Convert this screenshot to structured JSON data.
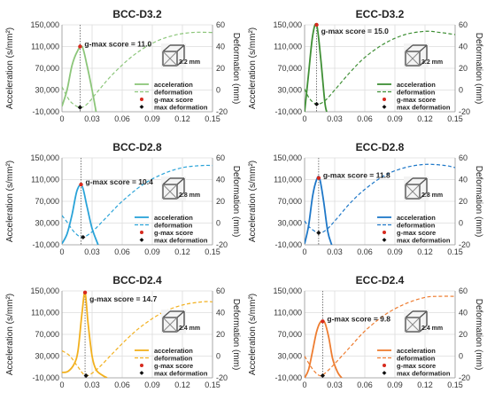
{
  "figure": {
    "y_left_ticks": [
      "150,000",
      "110,000",
      "70,000",
      "30,000",
      "-10,000"
    ],
    "y_right_ticks": [
      "60",
      "40",
      "20",
      "0",
      "-20"
    ],
    "x_ticks": [
      "0",
      "0.03",
      "0.06",
      "0.09",
      "0.12",
      "0.15"
    ],
    "ylabel_left": "Acceleration (s/mm²)",
    "ylabel_right": "Deformation (mm)",
    "legend": {
      "acceleration": "acceleration",
      "deformation": "deformation",
      "gmax": "g-max score",
      "maxdef": "max deformation"
    }
  },
  "chart_data": [
    {
      "type": "line",
      "title": "BCC-D3.2",
      "cell_size": "3.2 mm",
      "annotation": "g-max score = 11.0",
      "color": "#8cc67a",
      "xlim": [
        0,
        0.15
      ],
      "ylim_left": [
        -10000,
        150000
      ],
      "ylim_right": [
        -20,
        60
      ],
      "acceleration": {
        "x": [
          0,
          0.005,
          0.01,
          0.015,
          0.02,
          0.025,
          0.03,
          0.034
        ],
        "y": [
          0,
          30000,
          75000,
          100000,
          110000,
          75000,
          30000,
          -10000
        ]
      },
      "deformation": {
        "x": [
          0,
          0.005,
          0.01,
          0.018,
          0.025,
          0.035,
          0.05,
          0.07,
          0.09,
          0.11,
          0.13,
          0.15
        ],
        "y": [
          3,
          -6,
          -12,
          -16,
          -13,
          -2,
          14,
          31,
          43,
          50,
          53,
          53
        ]
      },
      "gmax": {
        "x": 0.018,
        "y": 110000
      },
      "max_deformation": {
        "x": 0.018,
        "y": -16
      }
    },
    {
      "type": "line",
      "title": "ECC-D3.2",
      "cell_size": "3.2 mm",
      "annotation": "g-max score = 15.0",
      "color": "#3f8f35",
      "xlim": [
        0,
        0.15
      ],
      "ylim_left": [
        -10000,
        150000
      ],
      "ylim_right": [
        -20,
        60
      ],
      "acceleration": {
        "x": [
          0,
          0.004,
          0.008,
          0.012,
          0.016,
          0.02,
          0.022
        ],
        "y": [
          -10000,
          60000,
          130000,
          150000,
          90000,
          10000,
          -10000
        ]
      },
      "deformation": {
        "x": [
          0,
          0.005,
          0.012,
          0.02,
          0.03,
          0.045,
          0.06,
          0.08,
          0.1,
          0.12,
          0.135,
          0.15
        ],
        "y": [
          1,
          -8,
          -13,
          -10,
          0,
          16,
          30,
          43,
          51,
          54,
          53,
          51
        ]
      },
      "gmax": {
        "x": 0.012,
        "y": 150000
      },
      "max_deformation": {
        "x": 0.012,
        "y": -13
      }
    },
    {
      "type": "line",
      "title": "BCC-D2.8",
      "cell_size": "2.8 mm",
      "annotation": "g-max score = 10.4",
      "color": "#2aa3d8",
      "xlim": [
        0,
        0.15
      ],
      "ylim_left": [
        -10000,
        150000
      ],
      "ylim_right": [
        -20,
        60
      ],
      "acceleration": {
        "x": [
          0,
          0.005,
          0.01,
          0.015,
          0.02,
          0.025,
          0.03,
          0.036
        ],
        "y": [
          -8000,
          10000,
          45000,
          90000,
          98000,
          60000,
          20000,
          -10000
        ]
      },
      "deformation": {
        "x": [
          0,
          0.005,
          0.012,
          0.02,
          0.03,
          0.045,
          0.06,
          0.08,
          0.1,
          0.12,
          0.14,
          0.15
        ],
        "y": [
          7,
          1,
          -8,
          -13,
          -8,
          6,
          20,
          35,
          45,
          51,
          53,
          53
        ]
      },
      "gmax": {
        "x": 0.019,
        "y": 101000
      },
      "max_deformation": {
        "x": 0.021,
        "y": -13
      }
    },
    {
      "type": "line",
      "title": "ECC-D2.8",
      "cell_size": "2.8 mm",
      "annotation": "g-max score = 11.8",
      "color": "#1f78c8",
      "xlim": [
        0,
        0.15
      ],
      "ylim_left": [
        -10000,
        150000
      ],
      "ylim_right": [
        -20,
        60
      ],
      "acceleration": {
        "x": [
          0,
          0.004,
          0.008,
          0.012,
          0.015,
          0.019,
          0.023,
          0.027
        ],
        "y": [
          -8000,
          25000,
          80000,
          110000,
          112000,
          70000,
          15000,
          -10000
        ]
      },
      "deformation": {
        "x": [
          0,
          0.005,
          0.014,
          0.022,
          0.032,
          0.045,
          0.06,
          0.08,
          0.1,
          0.12,
          0.14,
          0.15
        ],
        "y": [
          2,
          -4,
          -9,
          -6,
          4,
          18,
          31,
          44,
          51,
          54,
          53,
          51
        ]
      },
      "gmax": {
        "x": 0.014,
        "y": 113000
      },
      "max_deformation": {
        "x": 0.014,
        "y": -9
      }
    },
    {
      "type": "line",
      "title": "BCC-D2.4",
      "cell_size": "2.4 mm",
      "annotation": "g-max score = 14.7",
      "color": "#f2b01e",
      "xlim": [
        0,
        0.15
      ],
      "ylim_left": [
        -10000,
        150000
      ],
      "ylim_right": [
        -20,
        60
      ],
      "acceleration": {
        "x": [
          0,
          0.006,
          0.012,
          0.016,
          0.02,
          0.023,
          0.026,
          0.03,
          0.034,
          0.04,
          0.045
        ],
        "y": [
          0,
          2000,
          15000,
          40000,
          110000,
          147000,
          90000,
          30000,
          5000,
          -5000,
          -10000
        ]
      },
      "deformation": {
        "x": [
          0,
          0.008,
          0.016,
          0.024,
          0.035,
          0.05,
          0.065,
          0.08,
          0.1,
          0.12,
          0.14,
          0.15
        ],
        "y": [
          5,
          0,
          -10,
          -18,
          -12,
          2,
          16,
          28,
          40,
          47,
          50,
          50
        ]
      },
      "gmax": {
        "x": 0.023,
        "y": 147000
      },
      "max_deformation": {
        "x": 0.024,
        "y": -18
      }
    },
    {
      "type": "line",
      "title": "ECC-D2.4",
      "cell_size": "2.4 mm",
      "annotation": "g-max score = 9.8",
      "color": "#ee7d31",
      "xlim": [
        0,
        0.15
      ],
      "ylim_left": [
        -10000,
        150000
      ],
      "ylim_right": [
        -20,
        60
      ],
      "acceleration": {
        "x": [
          0,
          0.004,
          0.008,
          0.012,
          0.016,
          0.02,
          0.024,
          0.028,
          0.033,
          0.037
        ],
        "y": [
          -10000,
          5000,
          40000,
          75000,
          93000,
          92000,
          65000,
          25000,
          0,
          -10000
        ]
      },
      "deformation": {
        "x": [
          0,
          0.008,
          0.015,
          0.02,
          0.03,
          0.045,
          0.06,
          0.08,
          0.1,
          0.12,
          0.135,
          0.15
        ],
        "y": [
          0,
          -12,
          -18,
          -16,
          -7,
          8,
          23,
          38,
          48,
          54,
          55,
          55
        ]
      },
      "gmax": {
        "x": 0.018,
        "y": 94000
      },
      "max_deformation": {
        "x": 0.018,
        "y": -18
      }
    }
  ]
}
